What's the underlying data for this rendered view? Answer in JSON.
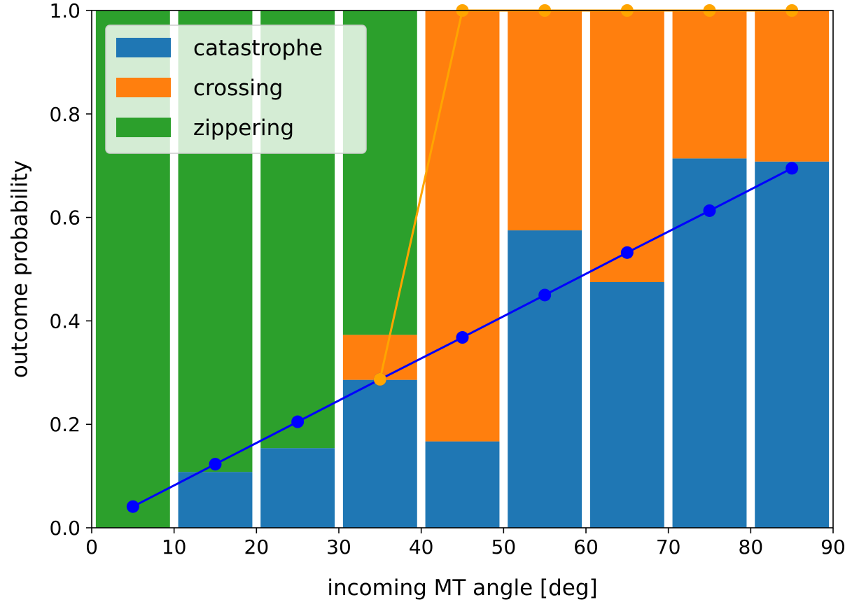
{
  "chart_data": {
    "type": "bar",
    "stacked": true,
    "x": [
      5,
      15,
      25,
      35,
      45,
      55,
      65,
      75,
      85
    ],
    "bar_width_units": 9,
    "series": [
      {
        "name": "catastrophe",
        "color": "#1f77b4",
        "values": [
          0.0,
          0.108,
          0.154,
          0.286,
          0.167,
          0.575,
          0.475,
          0.714,
          0.708
        ]
      },
      {
        "name": "crossing",
        "color": "#ff7f0e",
        "values": [
          0.0,
          0.0,
          0.0,
          0.087,
          0.833,
          0.425,
          0.525,
          0.286,
          0.292
        ]
      },
      {
        "name": "zippering",
        "color": "#2ca02c",
        "values": [
          1.0,
          0.892,
          0.846,
          0.627,
          0.0,
          0.0,
          0.0,
          0.0,
          0.0
        ]
      }
    ],
    "lines": [
      {
        "color": "#0000ff",
        "x": [
          5,
          15,
          25,
          35,
          45,
          55,
          65,
          75,
          85
        ],
        "y": [
          0.041,
          0.123,
          0.205,
          0.287,
          0.368,
          0.45,
          0.532,
          0.613,
          0.695
        ]
      },
      {
        "color": "#ffa500",
        "x": [
          35,
          45,
          55,
          65,
          75,
          85
        ],
        "y": [
          0.287,
          1.0,
          1.0,
          1.0,
          1.0,
          1.0
        ]
      }
    ],
    "xlabel": "incoming MT angle [deg]",
    "ylabel": "outcome probability",
    "xlim": [
      0,
      90
    ],
    "ylim": [
      0,
      1
    ],
    "xticks": [
      0,
      10,
      20,
      30,
      40,
      50,
      60,
      70,
      80,
      90
    ],
    "yticks": [
      0.0,
      0.2,
      0.4,
      0.6,
      0.8,
      1.0
    ],
    "xtick_labels": [
      "0",
      "10",
      "20",
      "30",
      "40",
      "50",
      "60",
      "70",
      "80",
      "90"
    ],
    "ytick_labels": [
      "0.0",
      "0.2",
      "0.4",
      "0.6",
      "0.8",
      "1.0"
    ],
    "legend": {
      "position": "upper-left",
      "entries": [
        "catastrophe",
        "crossing",
        "zippering"
      ]
    },
    "grid": false
  }
}
